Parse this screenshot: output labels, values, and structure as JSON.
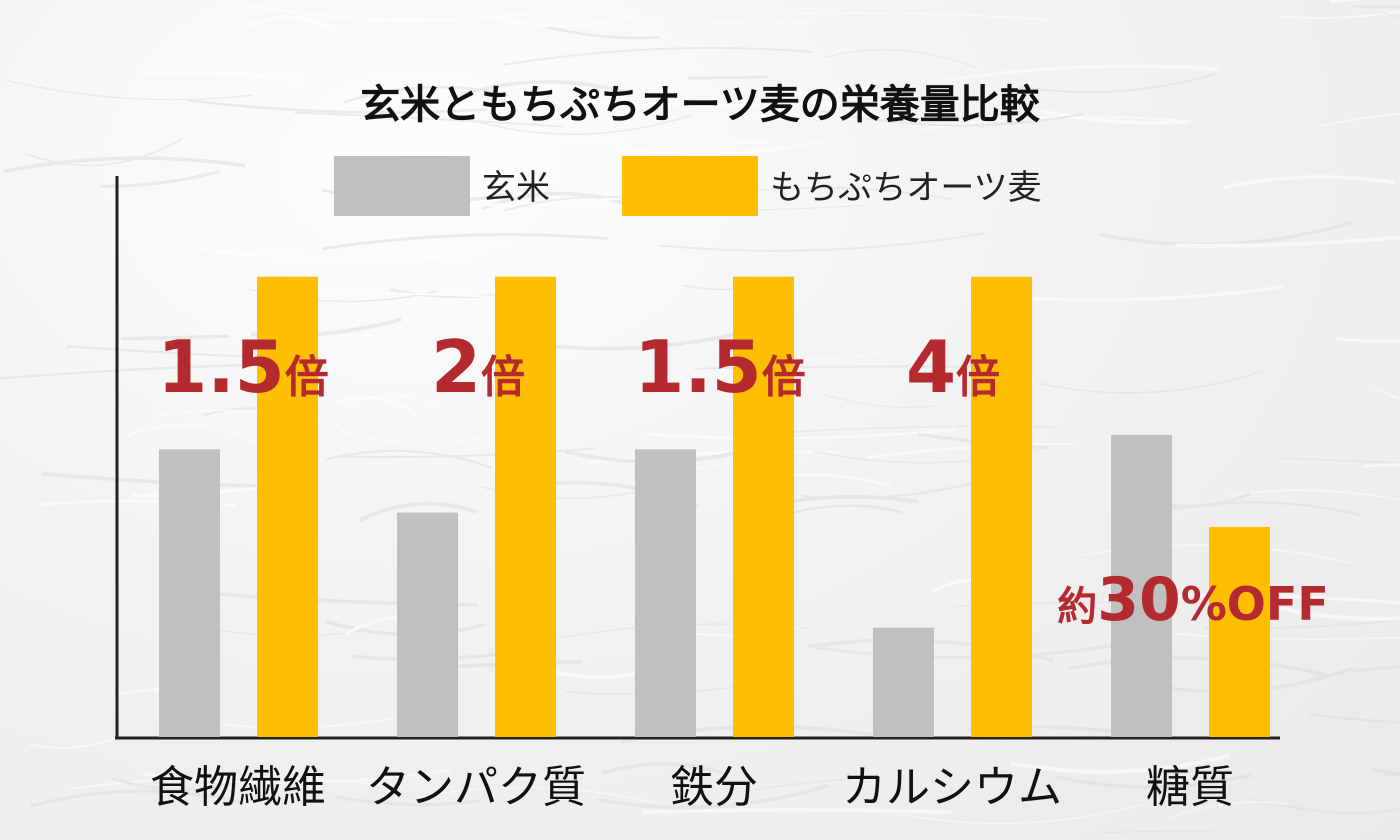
{
  "chart_data": {
    "type": "bar",
    "title": "玄米ともちぷちオーツ麦の栄養量比較",
    "categories": [
      "食物繊維",
      "タンパク質",
      "鉄分",
      "カルシウム",
      "糖質"
    ],
    "series": [
      {
        "name": "玄米",
        "color": "#c0c0c0",
        "values": [
          1.0,
          0.78,
          1.0,
          0.38,
          1.05
        ]
      },
      {
        "name": "もちぷちオーツ麦",
        "color": "#ffbf00",
        "values": [
          1.6,
          1.6,
          1.6,
          1.6,
          0.73
        ]
      }
    ],
    "annotations": [
      {
        "category": "食物繊維",
        "value": "1.5",
        "unit": "倍"
      },
      {
        "category": "タンパク質",
        "value": "2",
        "unit": "倍"
      },
      {
        "category": "鉄分",
        "value": "1.5",
        "unit": "倍"
      },
      {
        "category": "カルシウム",
        "value": "4",
        "unit": "倍"
      },
      {
        "category": "糖質",
        "prefix": "約",
        "value": "30",
        "unit": "%OFF"
      }
    ],
    "ylim": [
      0,
      1.95
    ],
    "grid": false,
    "legend_position": "top",
    "annotation_color": "#b42a2f"
  }
}
